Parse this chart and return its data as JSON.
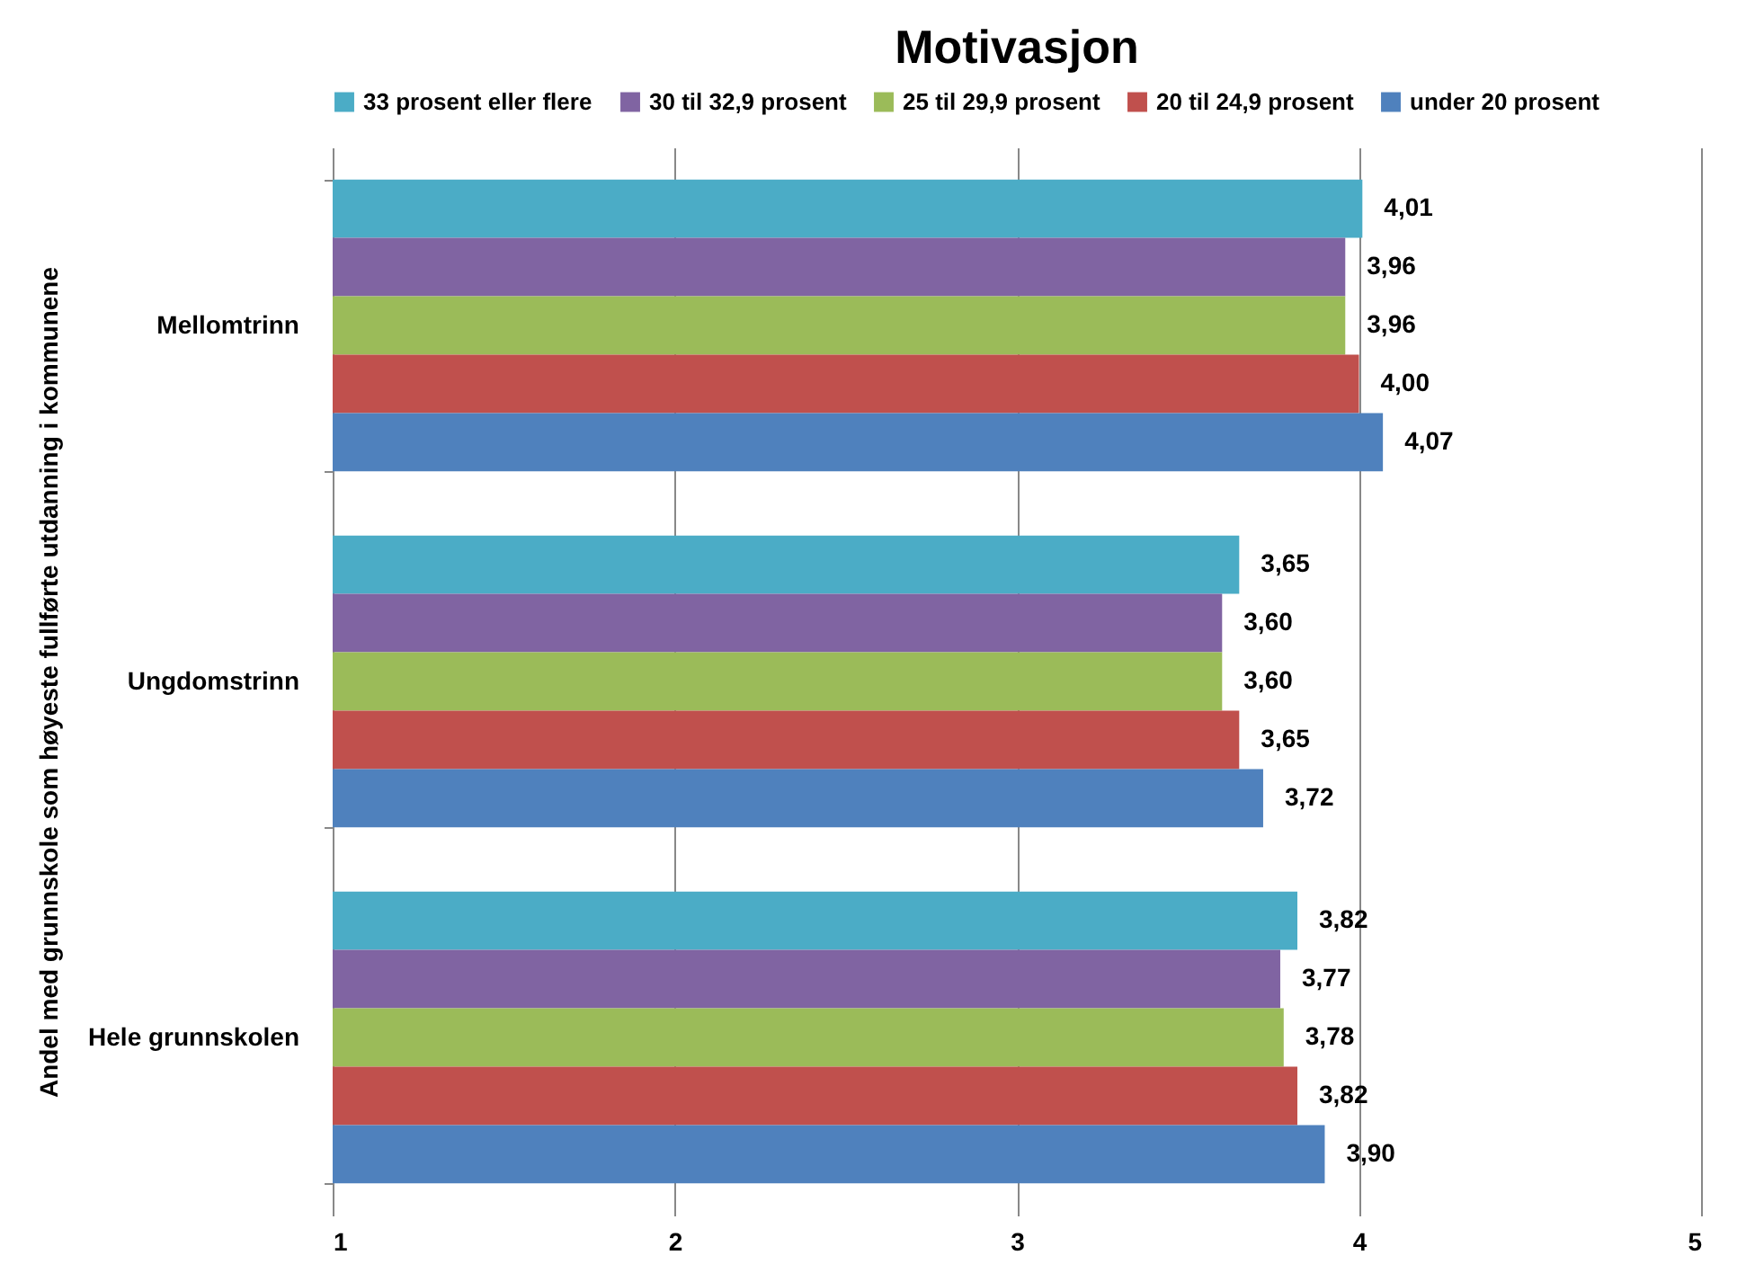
{
  "chart_data": {
    "type": "bar",
    "orientation": "horizontal",
    "title": "Motivasjon",
    "ylabel": "Andel  med grunnskole som høyeste fullførte utdanning i kommunene",
    "categories": [
      "Mellomtrinn",
      "Ungdomstrinn",
      "Hele grunnskolen"
    ],
    "series": [
      {
        "name": "33 prosent eller flere",
        "color": "#4bacc6",
        "values": [
          4.01,
          3.65,
          3.82
        ],
        "value_labels": [
          "4,01",
          "3,65",
          "3,82"
        ]
      },
      {
        "name": "30 til 32,9 prosent",
        "color": "#8064a2",
        "values": [
          3.96,
          3.6,
          3.77
        ],
        "value_labels": [
          "3,96",
          "3,60",
          "3,77"
        ]
      },
      {
        "name": "25 til 29,9 prosent",
        "color": "#9bbb59",
        "values": [
          3.96,
          3.6,
          3.78
        ],
        "value_labels": [
          "3,96",
          "3,60",
          "3,78"
        ]
      },
      {
        "name": "20 til 24,9 prosent",
        "color": "#c0504d",
        "values": [
          4.0,
          3.65,
          3.82
        ],
        "value_labels": [
          "4,00",
          "3,65",
          "3,82"
        ]
      },
      {
        "name": "under 20 prosent",
        "color": "#4f81bd",
        "values": [
          4.07,
          3.72,
          3.9
        ],
        "value_labels": [
          "4,07",
          "3,72",
          "3,90"
        ]
      }
    ],
    "xlim": [
      1,
      5
    ],
    "xticks": [
      1,
      2,
      3,
      4,
      5
    ],
    "grid": "x",
    "legend": "top"
  }
}
